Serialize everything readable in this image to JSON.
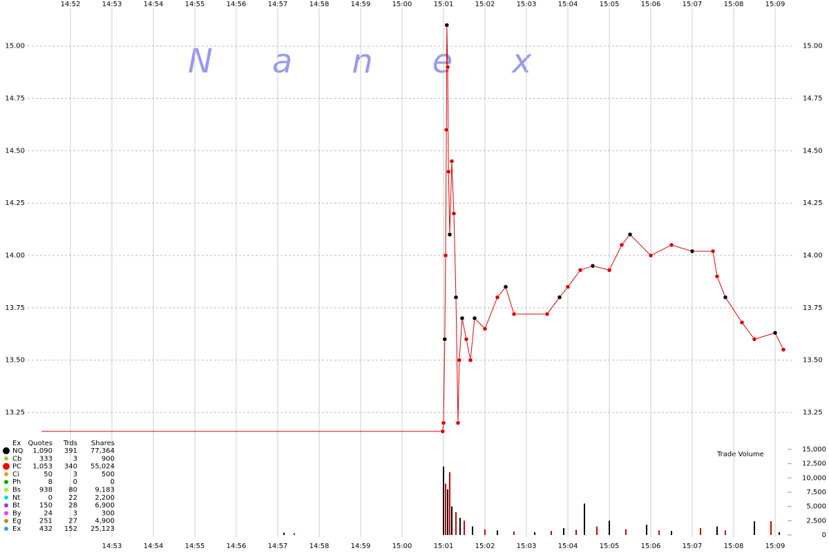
{
  "chart_data": {
    "type": "line",
    "watermark": "Nanex",
    "xlim": [
      891.3,
      909.4
    ],
    "xticks": [
      {
        "value": 892,
        "label": "14:52"
      },
      {
        "value": 893,
        "label": "14:53"
      },
      {
        "value": 894,
        "label": "14:54"
      },
      {
        "value": 895,
        "label": "14:55"
      },
      {
        "value": 896,
        "label": "14:56"
      },
      {
        "value": 897,
        "label": "14:57"
      },
      {
        "value": 898,
        "label": "14:58"
      },
      {
        "value": 899,
        "label": "14:59"
      },
      {
        "value": 900,
        "label": "15:00"
      },
      {
        "value": 901,
        "label": "15:01"
      },
      {
        "value": 902,
        "label": "15:02"
      },
      {
        "value": 903,
        "label": "15:03"
      },
      {
        "value": 904,
        "label": "15:04"
      },
      {
        "value": 905,
        "label": "15:05"
      },
      {
        "value": 906,
        "label": "15:06"
      },
      {
        "value": 907,
        "label": "15:07"
      },
      {
        "value": 908,
        "label": "15:08"
      },
      {
        "value": 909,
        "label": "15:09"
      }
    ],
    "xticks_bottom": [
      {
        "value": 893,
        "label": "14:53"
      },
      {
        "value": 894,
        "label": "14:54"
      },
      {
        "value": 895,
        "label": "14:55"
      },
      {
        "value": 896,
        "label": "14:56"
      },
      {
        "value": 897,
        "label": "14:57"
      },
      {
        "value": 898,
        "label": "14:58"
      },
      {
        "value": 899,
        "label": "14:59"
      },
      {
        "value": 900,
        "label": "15:00"
      },
      {
        "value": 901,
        "label": "15:01"
      },
      {
        "value": 902,
        "label": "15:02"
      },
      {
        "value": 903,
        "label": "15:03"
      },
      {
        "value": 904,
        "label": "15:04"
      },
      {
        "value": 905,
        "label": "15:05"
      },
      {
        "value": 906,
        "label": "15:06"
      },
      {
        "value": 907,
        "label": "15:07"
      },
      {
        "value": 908,
        "label": "15:08"
      },
      {
        "value": 909,
        "label": "15:09"
      }
    ],
    "ylim": [
      13.11,
      15.22
    ],
    "yticks": [
      {
        "value": 13.25,
        "label": "13.25"
      },
      {
        "value": 13.5,
        "label": "13.50"
      },
      {
        "value": 13.75,
        "label": "13.75"
      },
      {
        "value": 14,
        "label": "14.00"
      },
      {
        "value": 14.25,
        "label": "14.25"
      },
      {
        "value": 14.5,
        "label": "14.50"
      },
      {
        "value": 14.75,
        "label": "14.75"
      },
      {
        "value": 15,
        "label": "15.00"
      }
    ],
    "grid": true,
    "series": [
      {
        "color": "#e00000",
        "x": [
          891.3,
          900.98,
          901.0,
          901.03,
          901.05,
          901.07,
          901.08,
          901.1,
          901.12,
          901.15,
          901.2,
          901.25,
          901.3,
          901.35,
          901.38,
          901.45,
          901.55,
          901.65,
          901.75,
          902.0,
          902.3,
          902.5,
          902.7,
          903.5,
          903.8,
          904.0,
          904.3,
          904.6,
          905.0,
          905.3,
          905.5,
          906.0,
          906.5,
          907.0,
          907.5,
          907.6,
          907.8,
          908.2,
          908.5,
          909.0,
          909.2
        ],
        "values": [
          13.16,
          13.16,
          13.2,
          13.6,
          14.0,
          14.6,
          15.1,
          14.9,
          14.4,
          14.1,
          14.45,
          14.2,
          13.8,
          13.2,
          13.5,
          13.7,
          13.6,
          13.5,
          13.7,
          13.65,
          13.8,
          13.85,
          13.72,
          13.72,
          13.8,
          13.85,
          13.93,
          13.95,
          13.93,
          14.05,
          14.1,
          14.0,
          14.05,
          14.02,
          14.02,
          13.9,
          13.8,
          13.68,
          13.6,
          13.63,
          13.55
        ]
      }
    ],
    "volume": {
      "label": "Trade Volume",
      "color": "#000000",
      "y2lim": [
        0,
        15000
      ],
      "y2ticks": [
        0,
        {
          "value": 2500,
          "label": "2,500"
        },
        {
          "value": 5000,
          "label": "5,000"
        },
        {
          "value": 7500,
          "label": "7,500"
        },
        {
          "value": 10000,
          "label": "10,000"
        },
        {
          "value": 12500,
          "label": "12,500"
        },
        {
          "value": 15000,
          "label": "15,000"
        }
      ],
      "x": [
        897.15,
        897.4,
        901.0,
        901.05,
        901.1,
        901.15,
        901.2,
        901.3,
        901.4,
        901.5,
        901.7,
        902.0,
        902.3,
        902.7,
        903.2,
        903.6,
        903.9,
        904.2,
        904.4,
        904.7,
        905.0,
        905.4,
        905.9,
        906.2,
        906.5,
        907.2,
        907.6,
        907.8,
        908.5,
        908.9,
        909.1
      ],
      "values": [
        400,
        300,
        12000,
        9000,
        8000,
        11000,
        5000,
        4000,
        3000,
        2500,
        1500,
        1000,
        800,
        600,
        500,
        700,
        1200,
        900,
        5500,
        1500,
        2500,
        1000,
        1800,
        800,
        700,
        1200,
        1500,
        800,
        2400,
        2400,
        500
      ]
    },
    "legend": {
      "header": [
        "Ex",
        "Quotes",
        "Trds",
        "Shares"
      ],
      "rows": [
        {
          "color": "#000000",
          "cells": [
            "NQ",
            "1,090",
            "391",
            "77,364"
          ]
        },
        {
          "color": "#9acd32",
          "cells": [
            "Cb",
            "333",
            "3",
            "900"
          ]
        },
        {
          "color": "#ff0000",
          "cells": [
            "PC",
            "1,053",
            "340",
            "55,024"
          ]
        },
        {
          "color": "#ff9900",
          "cells": [
            "Ci",
            "50",
            "3",
            "500"
          ]
        },
        {
          "color": "#00aa00",
          "cells": [
            "Ph",
            "8",
            "0",
            "0"
          ]
        },
        {
          "color": "#99ff00",
          "cells": [
            "Bs",
            "938",
            "80",
            "9,183"
          ]
        },
        {
          "color": "#00dddd",
          "cells": [
            "Nt",
            "0",
            "22",
            "2,200"
          ]
        },
        {
          "color": "#9933ff",
          "cells": [
            "Bt",
            "150",
            "28",
            "6,900"
          ]
        },
        {
          "color": "#ff33ff",
          "cells": [
            "By",
            "24",
            "3",
            "300"
          ]
        },
        {
          "color": "#cc8800",
          "cells": [
            "Eg",
            "251",
            "27",
            "4,900"
          ]
        },
        {
          "color": "#3399ff",
          "cells": [
            "Ex",
            "432",
            "152",
            "25,123"
          ]
        }
      ]
    }
  }
}
